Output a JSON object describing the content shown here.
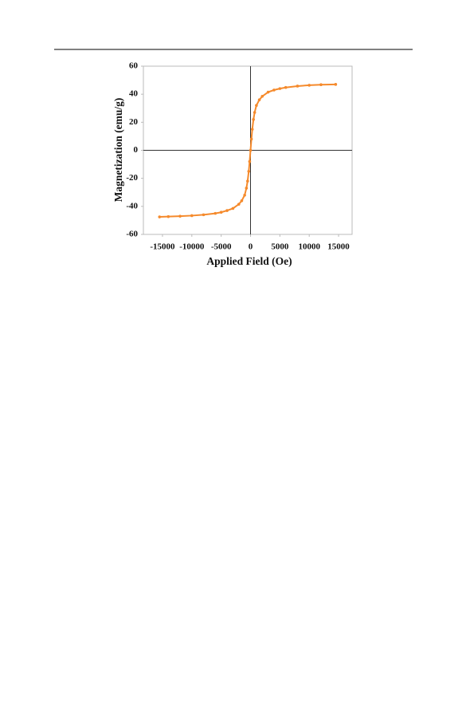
{
  "chart_data": {
    "type": "line",
    "x": [
      -15500,
      -14000,
      -12000,
      -10000,
      -8000,
      -6000,
      -5000,
      -4000,
      -3000,
      -2000,
      -1500,
      -1000,
      -700,
      -500,
      -300,
      -150,
      0,
      150,
      300,
      500,
      700,
      1000,
      1500,
      2000,
      3000,
      4000,
      5000,
      6000,
      8000,
      10000,
      12000,
      14500
    ],
    "values": [
      -47.5,
      -47.3,
      -47,
      -46.6,
      -46,
      -45,
      -44.2,
      -43,
      -41.5,
      -38.5,
      -36,
      -32,
      -27,
      -22,
      -15,
      -8,
      0,
      8,
      15,
      22,
      27,
      32,
      36,
      38.5,
      41.5,
      43,
      44,
      44.8,
      45.8,
      46.4,
      46.8,
      47
    ],
    "color": "#f58a2c",
    "xlabel": "Applied Field (Oe)",
    "ylabel": "Magnetization (emu/g)",
    "xlim": [
      -18250,
      17300
    ],
    "ylim": [
      -60,
      60
    ],
    "xticks": [
      -15000,
      -10000,
      -5000,
      0,
      5000,
      10000,
      15000
    ],
    "yticks": [
      60,
      40,
      20,
      0,
      -20,
      -40,
      -60
    ]
  }
}
